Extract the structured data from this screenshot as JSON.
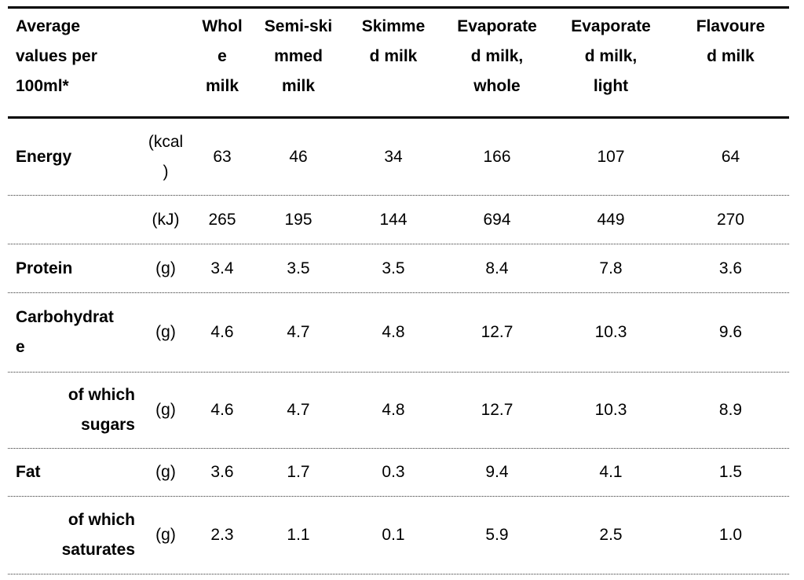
{
  "header": {
    "label": "Average\nvalues per\n100ml*",
    "unit": "",
    "columns": [
      "Whol\ne\nmilk",
      "Semi-ski\nmmed\nmilk",
      "Skimme\nd milk",
      "Evaporate\nd milk,\nwhole",
      "Evaporate\nd milk,\nlight",
      "Flavoure\nd milk"
    ]
  },
  "rows": [
    {
      "label": "Energy",
      "unit": "(kcal\n)",
      "values": [
        "63",
        "46",
        "34",
        "166",
        "107",
        "64"
      ]
    },
    {
      "label": "",
      "unit": "(kJ)",
      "values": [
        "265",
        "195",
        "144",
        "694",
        "449",
        "270"
      ]
    },
    {
      "label": "Protein",
      "unit": "(g)",
      "values": [
        "3.4",
        "3.5",
        "3.5",
        "8.4",
        "7.8",
        "3.6"
      ]
    },
    {
      "label": "Carbohydrat\ne",
      "unit": "(g)",
      "values": [
        "4.6",
        "4.7",
        "4.8",
        "12.7",
        "10.3",
        "9.6"
      ]
    },
    {
      "label": "of which\nsugars",
      "unit": "(g)",
      "values": [
        "4.6",
        "4.7",
        "4.8",
        "12.7",
        "10.3",
        "8.9"
      ]
    },
    {
      "label": "Fat",
      "unit": "(g)",
      "values": [
        "3.6",
        "1.7",
        "0.3",
        "9.4",
        "4.1",
        "1.5"
      ]
    },
    {
      "label": "of which\nsaturates",
      "unit": "(g)",
      "values": [
        "2.3",
        "1.1",
        "0.1",
        "5.9",
        "2.5",
        "1.0"
      ]
    }
  ]
}
